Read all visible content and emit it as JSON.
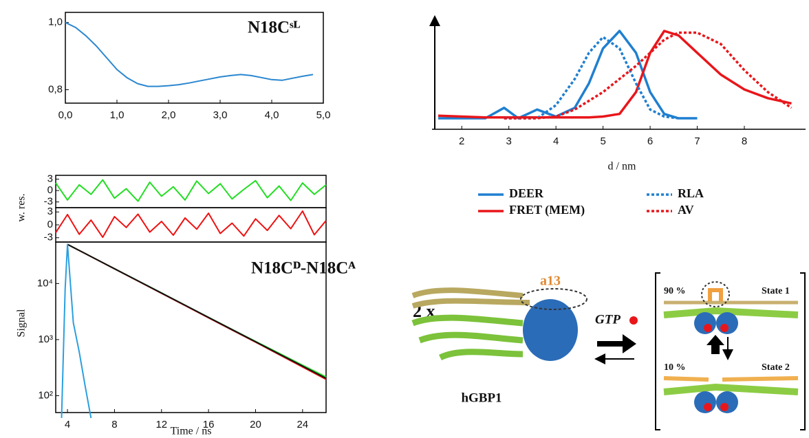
{
  "chart_data": [
    {
      "type": "line",
      "title": "N18Cˢᴸ",
      "x": [
        0,
        0.2,
        0.4,
        0.6,
        0.8,
        1.0,
        1.2,
        1.4,
        1.6,
        1.8,
        2.0,
        2.2,
        2.4,
        2.6,
        2.8,
        3.0,
        3.2,
        3.4,
        3.6,
        3.8,
        4.0,
        4.2,
        4.4,
        4.6,
        4.8
      ],
      "series": [
        {
          "color": "#2a86cf",
          "values": [
            1.0,
            0.985,
            0.96,
            0.93,
            0.895,
            0.86,
            0.835,
            0.818,
            0.81,
            0.81,
            0.812,
            0.815,
            0.82,
            0.826,
            0.832,
            0.838,
            0.842,
            0.845,
            0.842,
            0.836,
            0.83,
            0.828,
            0.834,
            0.84,
            0.845
          ]
        }
      ],
      "xlim": [
        0,
        5
      ],
      "xticks": [
        {
          "value": 0,
          "label": "0,0"
        },
        {
          "value": 1,
          "label": "1,0"
        },
        {
          "value": 2,
          "label": "2,0"
        },
        {
          "value": 3,
          "label": "3,0"
        },
        {
          "value": 4,
          "label": "4,0"
        },
        {
          "value": 5,
          "label": "5,0"
        }
      ],
      "ylim": [
        0.76,
        1.03
      ],
      "yticks": [
        {
          "value": 0.8,
          "label": "0,8"
        },
        {
          "value": 1.0,
          "label": "1,0"
        }
      ]
    },
    {
      "type": "line",
      "ylabel": "w. res.",
      "x": [
        3,
        4,
        5,
        6,
        7,
        8,
        9,
        10,
        11,
        12,
        13,
        14,
        15,
        16,
        17,
        18,
        19,
        20,
        21,
        22,
        23,
        24,
        25,
        26
      ],
      "series": [
        {
          "color": "#22dd22",
          "values": [
            2,
            -2.5,
            1.5,
            -1,
            2.8,
            -2,
            0.5,
            -2.8,
            2.2,
            -1.5,
            1,
            -2.5,
            2.5,
            -0.8,
            1.8,
            -2.2,
            0.3,
            2.6,
            -1.9,
            1.2,
            -2.6,
            2,
            -1,
            1.5
          ]
        }
      ],
      "xlim": [
        3,
        26
      ],
      "ylim": [
        -4.5,
        4
      ],
      "yticks": [
        -3,
        0,
        3
      ]
    },
    {
      "type": "line",
      "x": [
        3,
        4,
        5,
        6,
        7,
        8,
        9,
        10,
        11,
        12,
        13,
        14,
        15,
        16,
        17,
        18,
        19,
        20,
        21,
        22,
        23,
        24,
        25,
        26
      ],
      "series": [
        {
          "color": "#ee1111",
          "values": [
            -1.8,
            2.4,
            -2.2,
            1.1,
            -2.9,
            1.9,
            -0.6,
            2.5,
            -1.7,
            0.8,
            -2.4,
            1.6,
            -1,
            2.7,
            -2,
            0.4,
            -2.6,
            1.4,
            -1.3,
            2.2,
            -0.9,
            3.2,
            -2.3,
            1
          ]
        }
      ],
      "xlim": [
        3,
        26
      ],
      "ylim": [
        -4,
        4
      ],
      "yticks": [
        -3,
        0,
        3
      ]
    },
    {
      "type": "line",
      "title": "N18Cᴰ-N18Cᴬ",
      "xlabel": "Time / ns",
      "ylabel": "Signal",
      "log_y": true,
      "x": [
        3.5,
        3.8,
        4,
        4.5,
        5,
        5.5,
        6,
        8,
        10,
        12,
        14,
        16,
        18,
        20,
        22,
        24,
        26
      ],
      "series": [
        {
          "color": "#22dd22",
          "values": [
            null,
            null,
            50000,
            44100,
            38900,
            34400,
            30300,
            18400,
            11200,
            6800,
            4100,
            2500,
            1520,
            930,
            570,
            350,
            215
          ]
        },
        {
          "color": "#ee1111",
          "values": [
            null,
            null,
            50000,
            44000,
            38800,
            34300,
            30200,
            18300,
            11100,
            6700,
            4050,
            2450,
            1480,
            900,
            540,
            325,
            195
          ]
        },
        {
          "color": "#111111",
          "values": [
            null,
            null,
            50000,
            44100,
            38900,
            34400,
            30300,
            18400,
            11150,
            6770,
            4100,
            2490,
            1510,
            916,
            555,
            337,
            204
          ]
        },
        {
          "color": "#2a9fdf",
          "values": [
            40,
            8000,
            50000,
            2000,
            600,
            150,
            40,
            null,
            null,
            null,
            null,
            null,
            null,
            null,
            null,
            null,
            null
          ]
        }
      ],
      "xlim": [
        3,
        26
      ],
      "xticks": [
        4,
        8,
        12,
        16,
        20,
        24
      ],
      "ylim": [
        50,
        55000
      ],
      "yticks": [
        {
          "value": 100,
          "label": "10²"
        },
        {
          "value": 1000,
          "label": "10³"
        },
        {
          "value": 10000,
          "label": "10⁴"
        }
      ]
    },
    {
      "type": "line",
      "xlabel": "d / nm",
      "legend": true,
      "x": [
        1.5,
        2,
        2.5,
        2.9,
        3.2,
        3.6,
        4,
        4.4,
        4.7,
        5,
        5.35,
        5.7,
        6,
        6.3,
        6.6,
        7,
        7.5,
        8,
        8.5,
        9
      ],
      "series": [
        {
          "name": "DEER",
          "color": "#1f7fd0",
          "line_style": "solid",
          "values": [
            0,
            0,
            0,
            0.12,
            0,
            0.1,
            0.02,
            0.12,
            0.4,
            0.8,
            1.0,
            0.75,
            0.3,
            0.05,
            0,
            0,
            null,
            null,
            null,
            null
          ]
        },
        {
          "name": "FRET (MEM)",
          "color": "#e8161b",
          "line_style": "solid",
          "values": [
            0.03,
            0.02,
            0.01,
            0.01,
            0.01,
            0.01,
            0.01,
            0.01,
            0.01,
            0.02,
            0.05,
            0.3,
            0.75,
            1.0,
            0.95,
            0.75,
            0.5,
            0.33,
            0.23,
            0.17
          ]
        },
        {
          "name": "RLA",
          "color": "#1f7fd0",
          "line_style": "dotted",
          "values": [
            null,
            null,
            null,
            0,
            0,
            0,
            0.15,
            0.45,
            0.75,
            0.93,
            0.8,
            0.4,
            0.1,
            0.02,
            0,
            null,
            null,
            null,
            null,
            null
          ]
        },
        {
          "name": "AV",
          "color": "#e8161b",
          "line_style": "dotted",
          "values": [
            null,
            null,
            null,
            0,
            0,
            0,
            0.02,
            0.1,
            0.2,
            0.3,
            0.45,
            0.6,
            0.75,
            0.9,
            0.98,
            0.98,
            0.85,
            0.55,
            0.3,
            0.12
          ]
        }
      ],
      "xlim": [
        1.5,
        9.3
      ],
      "xticks": [
        2,
        3,
        4,
        5,
        6,
        7,
        8
      ],
      "ylim": [
        0,
        1.0
      ]
    }
  ],
  "diagram": {
    "multiplier": "2 x",
    "helix": "a13",
    "trigger": "GTP",
    "protein": "hGBP1",
    "states": [
      {
        "fraction": "90 %",
        "name": "State 1"
      },
      {
        "fraction": "10 %",
        "name": "State 2"
      }
    ]
  }
}
